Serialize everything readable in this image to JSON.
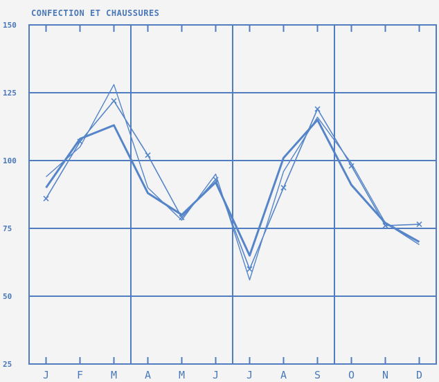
{
  "chart_data": {
    "type": "line",
    "title": "CONFECTION ET CHAUSSURES",
    "xlabel": "",
    "ylabel": "",
    "categories": [
      "J",
      "F",
      "M",
      "A",
      "M",
      "J",
      "J",
      "A",
      "S",
      "O",
      "N",
      "D"
    ],
    "y_ticks": [
      "150",
      "125",
      "100",
      "75",
      "50",
      "25"
    ],
    "ylim": [
      25,
      150
    ],
    "grid": true,
    "legend": "none",
    "colors": {
      "line": "#5585c8",
      "grid": "#4f7dc0",
      "text": "#4a78b8",
      "background": "#f4f4f4"
    },
    "series": [
      {
        "values": [
          86,
          107,
          122,
          102,
          79,
          93,
          60,
          90,
          119,
          98,
          76,
          76.5
        ],
        "markers": true,
        "stroke_width": 1.6
      },
      {
        "values": [
          90,
          108,
          113,
          88,
          80,
          92,
          65,
          101,
          115,
          91,
          77,
          70
        ],
        "markers": false,
        "stroke_width": 3
      },
      {
        "values": [
          94,
          105,
          128,
          90,
          78,
          95,
          56,
          96,
          116,
          99,
          77,
          69
        ],
        "markers": false,
        "stroke_width": 1.4
      }
    ]
  }
}
